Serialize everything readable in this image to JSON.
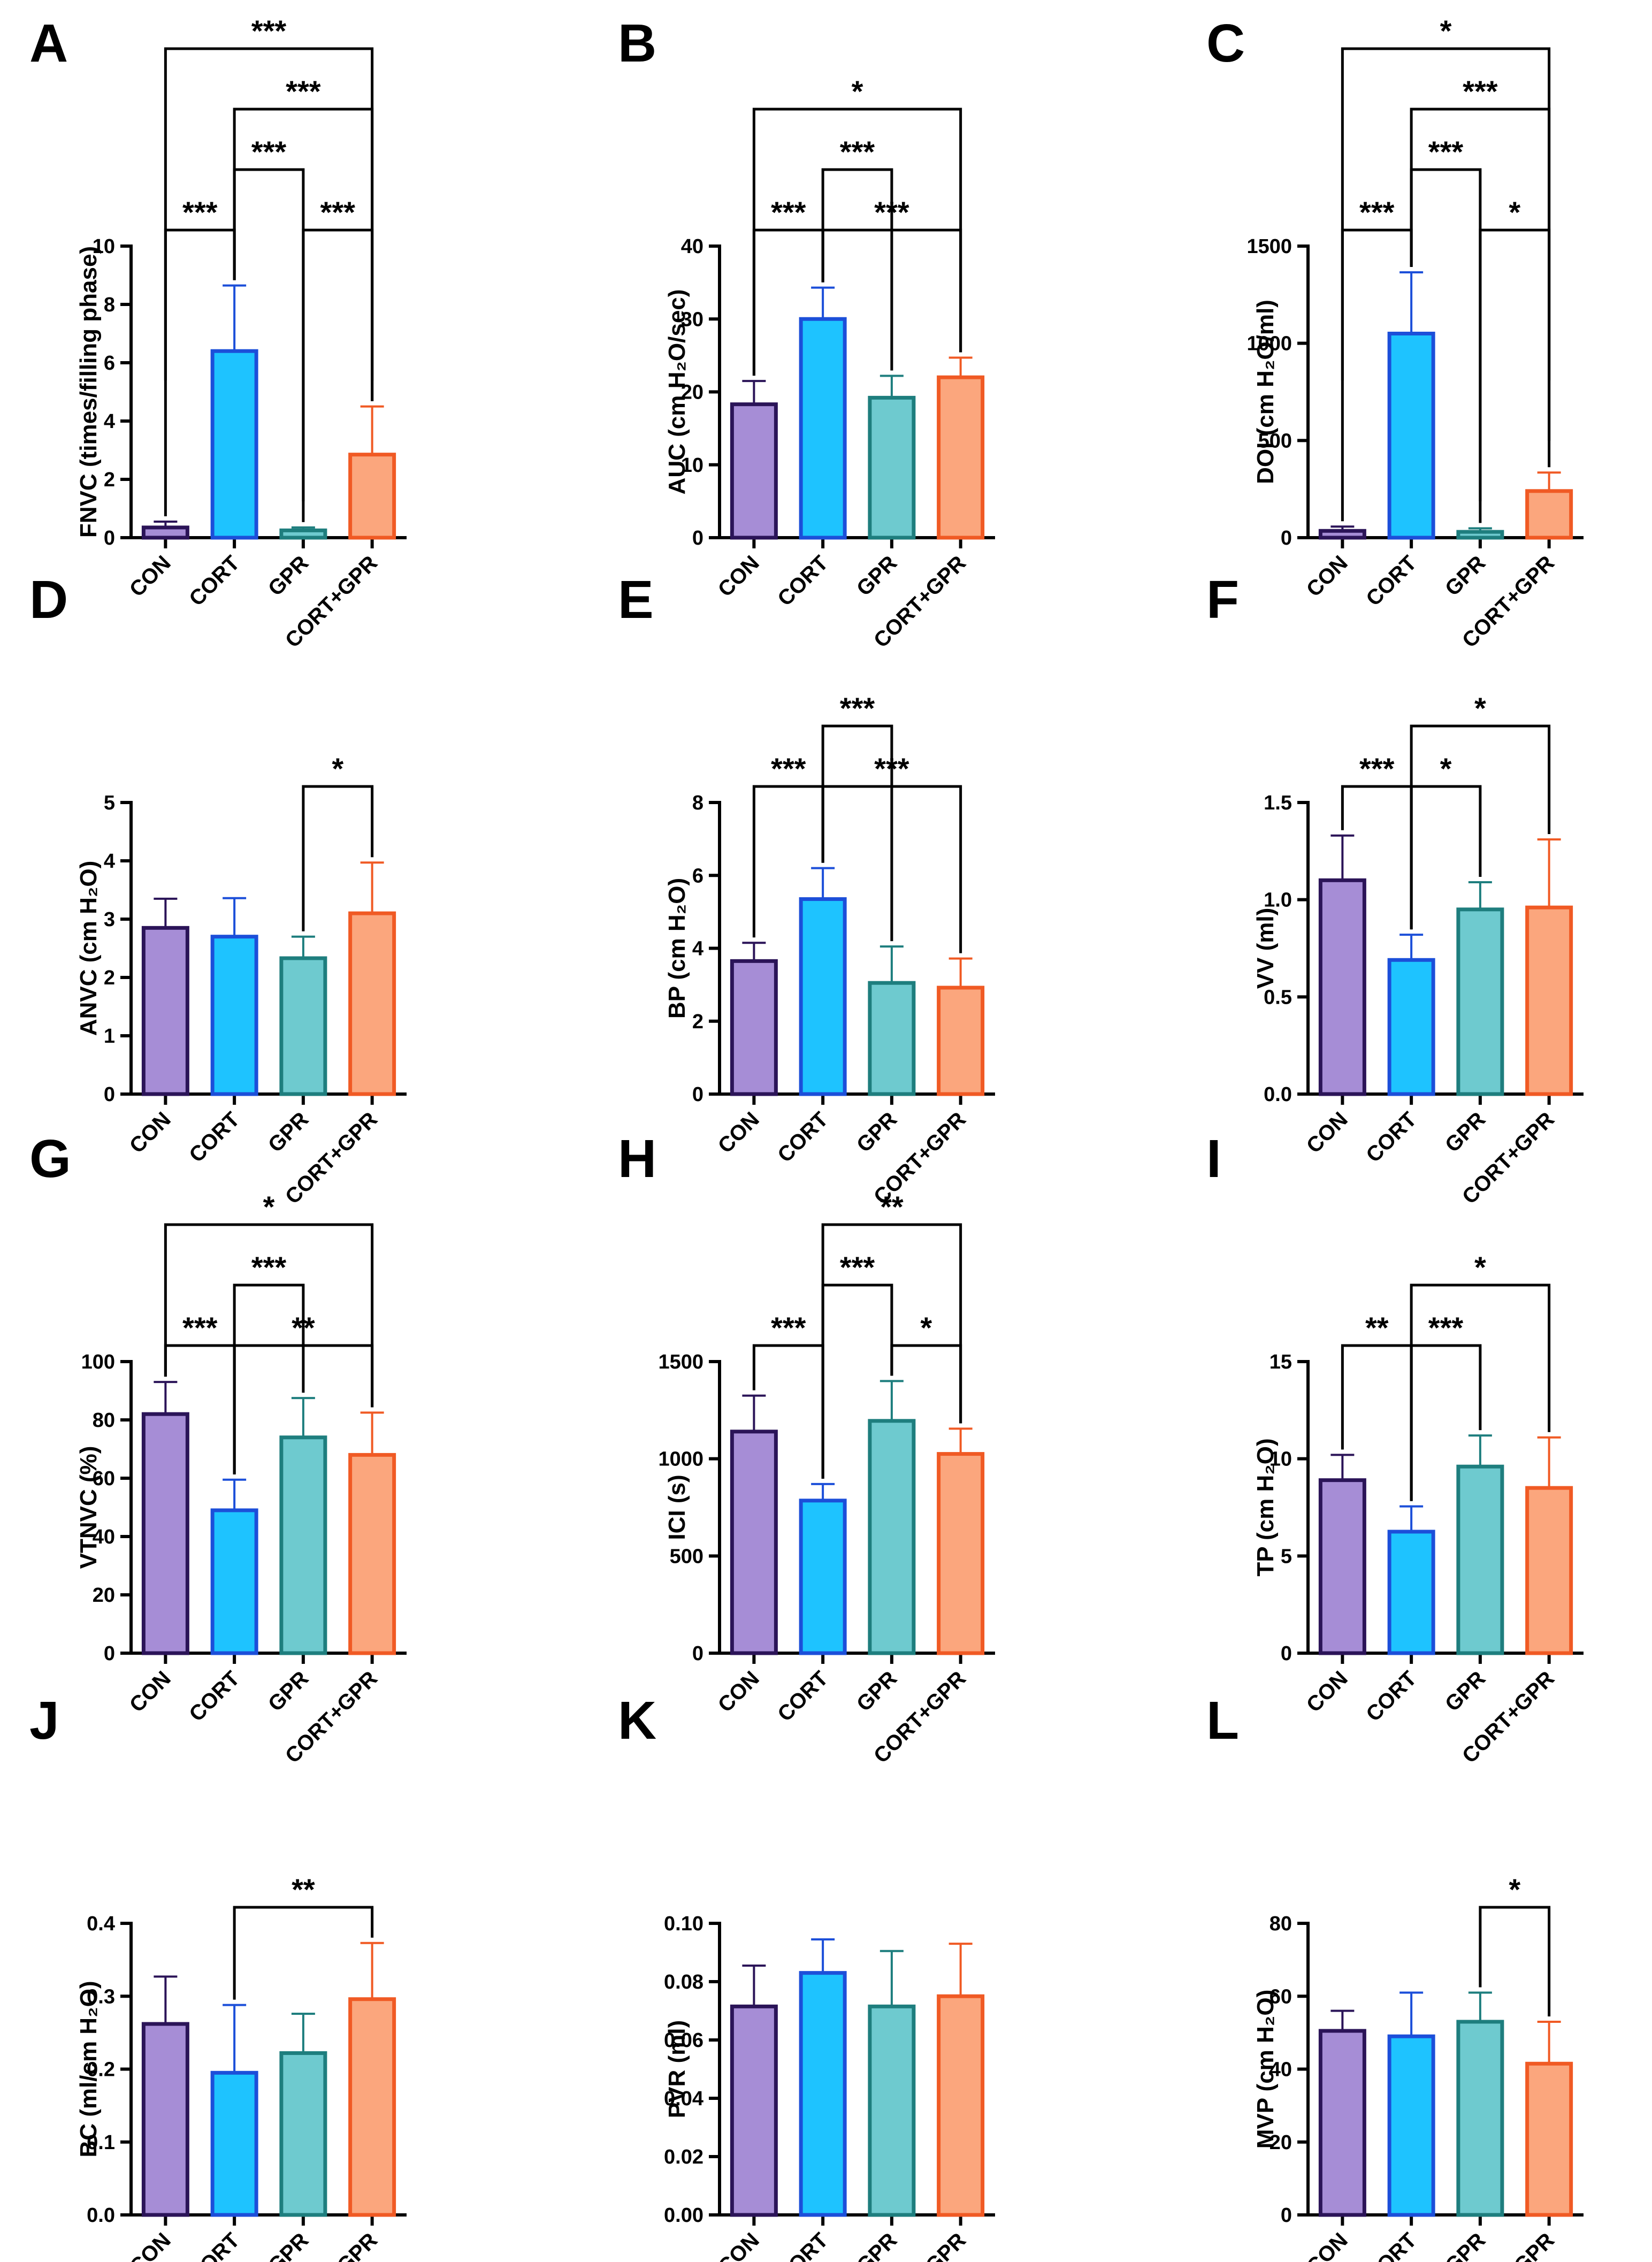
{
  "figure": {
    "colors": {
      "CON": {
        "fill": "#A68DD6",
        "stroke": "#2B1458"
      },
      "CORT": {
        "fill": "#1EC3FF",
        "stroke": "#1C4FD9"
      },
      "GPR": {
        "fill": "#6ECACF",
        "stroke": "#1E7E7E"
      },
      "CORT+GPR": {
        "fill": "#FBA67D",
        "stroke": "#F05A24"
      }
    }
  },
  "chart_data": [
    {
      "panel": "A",
      "type": "bar",
      "categories": [
        "CON",
        "CORT",
        "GPR",
        "CORT+GPR"
      ],
      "values": [
        0.35,
        6.4,
        0.25,
        2.85
      ],
      "errors": [
        0.2,
        2.25,
        0.1,
        1.65
      ],
      "ylabel": "FNVC (times/filling phase)",
      "ylim": [
        0,
        10
      ],
      "yticks": [
        0,
        2,
        4,
        6,
        8,
        10
      ],
      "tick_labels": [
        "0",
        "2",
        "4",
        "6",
        "8",
        "10"
      ],
      "significance": [
        {
          "from": 0,
          "to": 1,
          "label": "***",
          "level": 0
        },
        {
          "from": 2,
          "to": 3,
          "label": "***",
          "level": 0
        },
        {
          "from": 1,
          "to": 2,
          "label": "***",
          "level": 1
        },
        {
          "from": 1,
          "to": 3,
          "label": "***",
          "level": 2
        },
        {
          "from": 0,
          "to": 3,
          "label": "***",
          "level": 3
        }
      ]
    },
    {
      "panel": "B",
      "type": "bar",
      "categories": [
        "CON",
        "CORT",
        "GPR",
        "CORT+GPR"
      ],
      "values": [
        18.3,
        30.0,
        19.2,
        22.0
      ],
      "errors": [
        3.2,
        4.3,
        3.0,
        2.7
      ],
      "ylabel": "AUC (cm H₂O/sec)",
      "ylim": [
        0,
        40
      ],
      "yticks": [
        0,
        10,
        20,
        30,
        40
      ],
      "tick_labels": [
        "0",
        "10",
        "20",
        "30",
        "40"
      ],
      "significance": [
        {
          "from": 0,
          "to": 1,
          "label": "***",
          "level": 0
        },
        {
          "from": 1,
          "to": 3,
          "label": "***",
          "level": 0
        },
        {
          "from": 1,
          "to": 2,
          "label": "***",
          "level": 1
        },
        {
          "from": 0,
          "to": 3,
          "label": "*",
          "level": 2
        }
      ]
    },
    {
      "panel": "C",
      "type": "bar",
      "categories": [
        "CON",
        "CORT",
        "GPR",
        "CORT+GPR"
      ],
      "values": [
        35,
        1050,
        30,
        240
      ],
      "errors": [
        22,
        315,
        18,
        95
      ],
      "ylabel": "DOI (cm H₂O/ml)",
      "ylim": [
        0,
        1500
      ],
      "yticks": [
        0,
        500,
        1000,
        1500
      ],
      "tick_labels": [
        "0",
        "500",
        "1000",
        "1500"
      ],
      "significance": [
        {
          "from": 0,
          "to": 1,
          "label": "***",
          "level": 0
        },
        {
          "from": 2,
          "to": 3,
          "label": "*",
          "level": 0
        },
        {
          "from": 1,
          "to": 2,
          "label": "***",
          "level": 1
        },
        {
          "from": 1,
          "to": 3,
          "label": "***",
          "level": 2
        },
        {
          "from": 0,
          "to": 3,
          "label": "*",
          "level": 3
        }
      ]
    },
    {
      "panel": "D",
      "type": "bar",
      "categories": [
        "CON",
        "CORT",
        "GPR",
        "CORT+GPR"
      ],
      "values": [
        2.85,
        2.7,
        2.33,
        3.1
      ],
      "errors": [
        0.5,
        0.66,
        0.37,
        0.87
      ],
      "ylabel": "ANVC (cm H₂O)",
      "ylim": [
        0,
        5
      ],
      "yticks": [
        0,
        1,
        2,
        3,
        4,
        5
      ],
      "tick_labels": [
        "0",
        "1",
        "2",
        "3",
        "4",
        "5"
      ],
      "significance": [
        {
          "from": 2,
          "to": 3,
          "label": "*",
          "level": 0
        }
      ]
    },
    {
      "panel": "E",
      "type": "bar",
      "categories": [
        "CON",
        "CORT",
        "GPR",
        "CORT+GPR"
      ],
      "values": [
        3.65,
        5.35,
        3.05,
        2.92
      ],
      "errors": [
        0.5,
        0.85,
        1.0,
        0.8
      ],
      "ylabel": "BP (cm H₂O)",
      "ylim": [
        0,
        8
      ],
      "yticks": [
        0,
        2,
        4,
        6,
        8
      ],
      "tick_labels": [
        "0",
        "2",
        "4",
        "6",
        "8"
      ],
      "significance": [
        {
          "from": 0,
          "to": 1,
          "label": "***",
          "level": 0
        },
        {
          "from": 1,
          "to": 3,
          "label": "***",
          "level": 0
        },
        {
          "from": 1,
          "to": 2,
          "label": "***",
          "level": 1
        }
      ]
    },
    {
      "panel": "F",
      "type": "bar",
      "categories": [
        "CON",
        "CORT",
        "GPR",
        "CORT+GPR"
      ],
      "values": [
        1.1,
        0.69,
        0.95,
        0.96
      ],
      "errors": [
        0.23,
        0.13,
        0.14,
        0.35
      ],
      "ylabel": "VV (ml)",
      "ylim": [
        0,
        1.5
      ],
      "yticks": [
        0,
        0.5,
        1.0,
        1.5
      ],
      "tick_labels": [
        "0.0",
        "0.5",
        "1.0",
        "1.5"
      ],
      "significance": [
        {
          "from": 0,
          "to": 1,
          "label": "***",
          "level": 0
        },
        {
          "from": 1,
          "to": 2,
          "label": "*",
          "level": 0
        },
        {
          "from": 1,
          "to": 3,
          "label": "*",
          "level": 1
        }
      ]
    },
    {
      "panel": "G",
      "type": "bar",
      "categories": [
        "CON",
        "CORT",
        "GPR",
        "CORT+GPR"
      ],
      "values": [
        82,
        49,
        74,
        68
      ],
      "errors": [
        11,
        10.5,
        13.5,
        14.5
      ],
      "ylabel": "VTNVC (%)",
      "ylim": [
        0,
        100
      ],
      "yticks": [
        0,
        20,
        40,
        60,
        80,
        100
      ],
      "tick_labels": [
        "0",
        "20",
        "40",
        "60",
        "80",
        "100"
      ],
      "significance": [
        {
          "from": 0,
          "to": 1,
          "label": "***",
          "level": 0
        },
        {
          "from": 1,
          "to": 3,
          "label": "**",
          "level": 0
        },
        {
          "from": 1,
          "to": 2,
          "label": "***",
          "level": 1
        },
        {
          "from": 0,
          "to": 3,
          "label": "*",
          "level": 2
        }
      ]
    },
    {
      "panel": "H",
      "type": "bar",
      "categories": [
        "CON",
        "CORT",
        "GPR",
        "CORT+GPR"
      ],
      "values": [
        1140,
        785,
        1195,
        1025
      ],
      "errors": [
        185,
        85,
        205,
        130
      ],
      "ylabel": "ICI (s)",
      "ylim": [
        0,
        1500
      ],
      "yticks": [
        0,
        500,
        1000,
        1500
      ],
      "tick_labels": [
        "0",
        "500",
        "1000",
        "1500"
      ],
      "significance": [
        {
          "from": 0,
          "to": 1,
          "label": "***",
          "level": 0
        },
        {
          "from": 2,
          "to": 3,
          "label": "*",
          "level": 0
        },
        {
          "from": 1,
          "to": 2,
          "label": "***",
          "level": 1
        },
        {
          "from": 1,
          "to": 3,
          "label": "**",
          "level": 2
        }
      ]
    },
    {
      "panel": "I",
      "type": "bar",
      "categories": [
        "CON",
        "CORT",
        "GPR",
        "CORT+GPR"
      ],
      "values": [
        8.9,
        6.25,
        9.6,
        8.5
      ],
      "errors": [
        1.3,
        1.3,
        1.6,
        2.6
      ],
      "ylabel": "TP (cm H₂O)",
      "ylim": [
        0,
        15
      ],
      "yticks": [
        0,
        5,
        10,
        15
      ],
      "tick_labels": [
        "0",
        "5",
        "10",
        "15"
      ],
      "significance": [
        {
          "from": 0,
          "to": 1,
          "label": "**",
          "level": 0
        },
        {
          "from": 1,
          "to": 2,
          "label": "***",
          "level": 0
        },
        {
          "from": 1,
          "to": 3,
          "label": "*",
          "level": 1
        }
      ]
    },
    {
      "panel": "J",
      "type": "bar",
      "categories": [
        "CON",
        "CORT",
        "GPR",
        "CORT+GPR"
      ],
      "values": [
        0.262,
        0.195,
        0.222,
        0.296
      ],
      "errors": [
        0.065,
        0.093,
        0.054,
        0.077
      ],
      "ylabel": "BC (ml/cm H₂O)",
      "ylim": [
        0,
        0.4
      ],
      "yticks": [
        0,
        0.1,
        0.2,
        0.3,
        0.4
      ],
      "tick_labels": [
        "0.0",
        "0.1",
        "0.2",
        "0.3",
        "0.4"
      ],
      "significance": [
        {
          "from": 1,
          "to": 3,
          "label": "**",
          "level": 0
        }
      ]
    },
    {
      "panel": "K",
      "type": "bar",
      "categories": [
        "CON",
        "CORT",
        "GPR",
        "CORT+GPR"
      ],
      "values": [
        0.0715,
        0.083,
        0.0715,
        0.075
      ],
      "errors": [
        0.014,
        0.0115,
        0.019,
        0.018
      ],
      "ylabel": "PVR (ml)",
      "ylim": [
        0,
        0.1
      ],
      "yticks": [
        0,
        0.02,
        0.04,
        0.06,
        0.08,
        0.1
      ],
      "tick_labels": [
        "0.00",
        "0.02",
        "0.04",
        "0.06",
        "0.08",
        "0.10"
      ],
      "significance": []
    },
    {
      "panel": "L",
      "type": "bar",
      "categories": [
        "CON",
        "CORT",
        "GPR",
        "CORT+GPR"
      ],
      "values": [
        50.5,
        49,
        53,
        41.5
      ],
      "errors": [
        5.5,
        12,
        8,
        11.5
      ],
      "ylabel": "MVP (cm H₂O)",
      "ylim": [
        0,
        80
      ],
      "yticks": [
        0,
        20,
        40,
        60,
        80
      ],
      "tick_labels": [
        "0",
        "20",
        "40",
        "60",
        "80"
      ],
      "significance": [
        {
          "from": 2,
          "to": 3,
          "label": "*",
          "level": 0
        }
      ]
    }
  ]
}
